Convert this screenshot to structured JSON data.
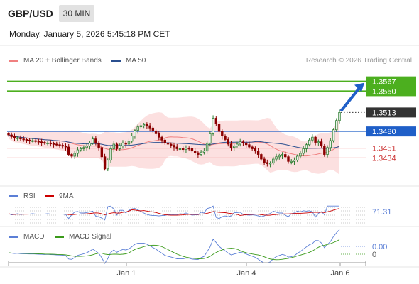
{
  "header": {
    "symbol": "GBP/USD",
    "timeframe": "30 MIN",
    "datetime": "Monday, January 5, 2026 5:45:18 PM CET"
  },
  "legend": {
    "bollinger": {
      "label": "MA 20 + Bollinger Bands",
      "color": "#f08080"
    },
    "ma50": {
      "label": "MA 50",
      "color": "#2a4f8f"
    }
  },
  "research_text": "Research © 2026 Trading Central",
  "rsi_panel": {
    "label": "RSI",
    "ma_label": "9MA",
    "value_label": "71.31",
    "rsi_color": "#5b7fd6",
    "ma_color": "#cc0000"
  },
  "macd_panel": {
    "label": "MACD",
    "signal_label": "MACD Signal",
    "macd_value_label": "0.00",
    "signal_value_label": "0",
    "macd_color": "#5b7fd6",
    "signal_color": "#3a9a1a"
  },
  "chart_data": {
    "type": "candlestick",
    "y_range": [
      1.3395,
      1.359
    ],
    "levels": [
      {
        "label": "1.3567",
        "value": 1.3567,
        "kind": "resistance"
      },
      {
        "label": "1.3550",
        "value": 1.355,
        "kind": "resistance"
      },
      {
        "label": "1.3513",
        "value": 1.3513,
        "kind": "current"
      },
      {
        "label": "1.3480",
        "value": 1.348,
        "kind": "pivot"
      },
      {
        "label": "1.3451",
        "value": 1.3451,
        "kind": "support"
      },
      {
        "label": "1.3434",
        "value": 1.3434,
        "kind": "support"
      }
    ],
    "x_ticks": [
      "Jan 1",
      "Jan 4",
      "Jan 6"
    ],
    "closes": [
      1.3474,
      1.3471,
      1.3469,
      1.3469,
      1.3467,
      1.3466,
      1.3465,
      1.3464,
      1.3464,
      1.3463,
      1.3462,
      1.3461,
      1.346,
      1.346,
      1.3459,
      1.3458,
      1.3457,
      1.3456,
      1.3455,
      1.3453,
      1.344,
      1.3437,
      1.3442,
      1.3448,
      1.345,
      1.3452,
      1.3455,
      1.346,
      1.3467,
      1.346,
      1.3452,
      1.3436,
      1.3415,
      1.343,
      1.345,
      1.3458,
      1.345,
      1.3455,
      1.346,
      1.3458,
      1.3463,
      1.3472,
      1.3482,
      1.3488,
      1.349,
      1.3492,
      1.349,
      1.3486,
      1.3481,
      1.3476,
      1.347,
      1.3465,
      1.346,
      1.3458,
      1.3456,
      1.3453,
      1.345,
      1.345,
      1.3449,
      1.3451,
      1.345,
      1.3446,
      1.3443,
      1.344,
      1.3444,
      1.3446,
      1.346,
      1.3476,
      1.3503,
      1.3493,
      1.348,
      1.3472,
      1.3466,
      1.3458,
      1.3452,
      1.3455,
      1.3458,
      1.3462,
      1.346,
      1.3457,
      1.3453,
      1.345,
      1.3446,
      1.344,
      1.3432,
      1.3426,
      1.3424,
      1.3425,
      1.3432,
      1.3436,
      1.3438,
      1.344,
      1.3436,
      1.3428,
      1.3428,
      1.343,
      1.3437,
      1.3442,
      1.345,
      1.3457,
      1.3465,
      1.347,
      1.3461,
      1.3462,
      1.3455,
      1.344,
      1.3452,
      1.3464,
      1.3483,
      1.3499,
      1.3513
    ],
    "rsi_value": 71.31,
    "macd_value": 0.0
  }
}
